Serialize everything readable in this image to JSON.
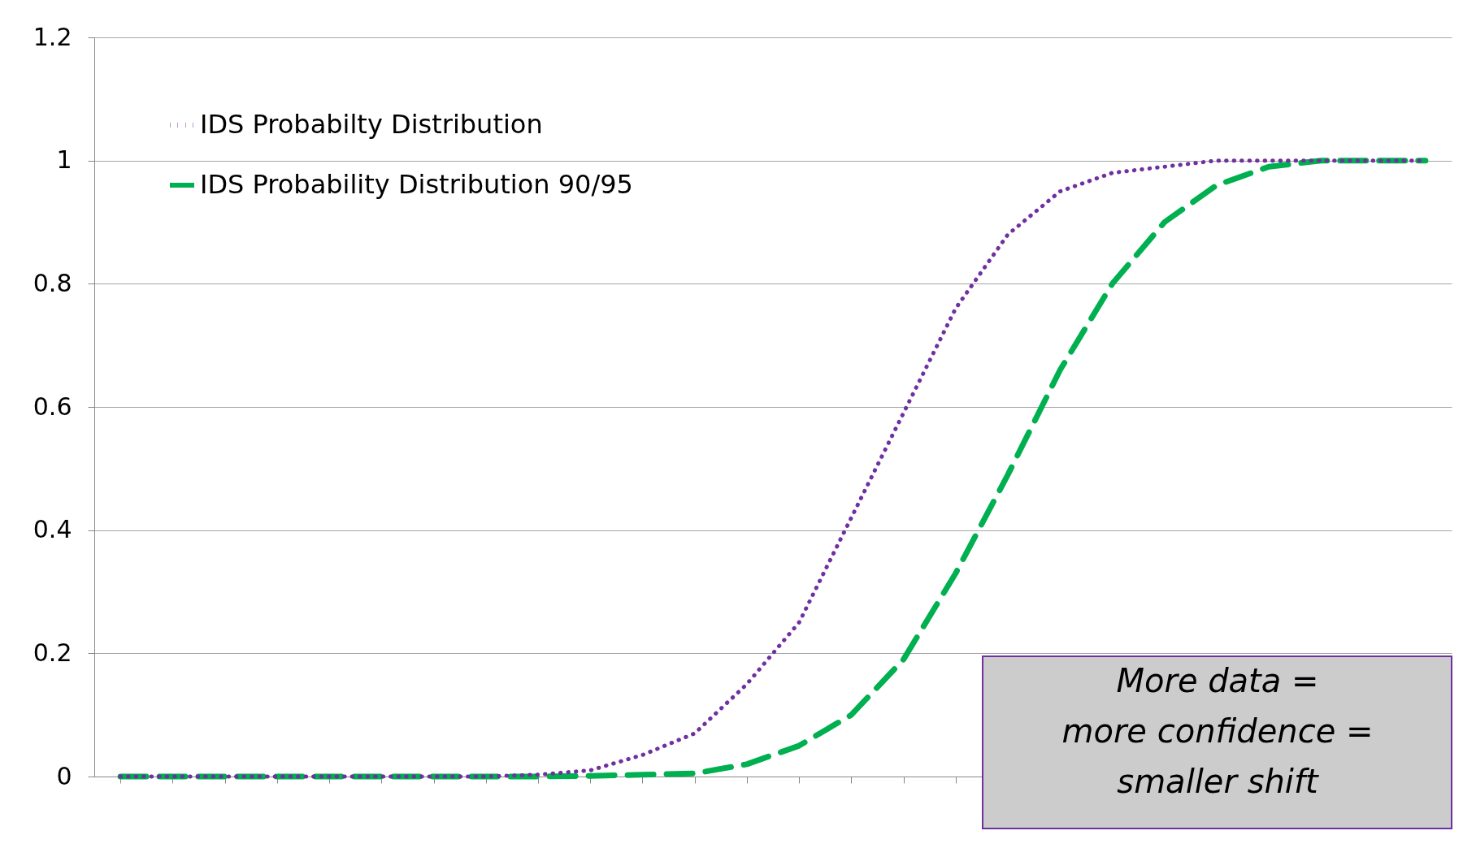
{
  "chart_data": {
    "type": "line",
    "categories": [
      null,
      null,
      null,
      null,
      null,
      null,
      null,
      null,
      null,
      null,
      null,
      null,
      null,
      null,
      null,
      null,
      null,
      null,
      null,
      null,
      null,
      null,
      null,
      null,
      null,
      null
    ],
    "series": [
      {
        "name": "IDS Probabilty Distribution",
        "color": "#7030a0",
        "line_style": "dotted",
        "values": [
          0,
          0,
          0,
          0,
          0,
          0,
          0,
          0,
          0.003,
          0.01,
          0.035,
          0.07,
          0.15,
          0.25,
          0.42,
          0.59,
          0.76,
          0.88,
          0.95,
          0.98,
          0.99,
          1,
          1,
          1,
          1,
          1
        ]
      },
      {
        "name": "IDS Probability Distribution 90/95",
        "color": "#00b050",
        "line_style": "dashed",
        "values": [
          0,
          0,
          0,
          0,
          0,
          0,
          0,
          0,
          0,
          0.001,
          0.003,
          0.005,
          0.02,
          0.05,
          0.1,
          0.19,
          0.33,
          0.49,
          0.66,
          0.8,
          0.9,
          0.96,
          0.99,
          1,
          1,
          1
        ]
      }
    ],
    "ylim": [
      0,
      1.2
    ],
    "yticks": [
      0,
      0.2,
      0.4,
      0.6,
      0.8,
      1,
      1.2
    ],
    "grid": "y",
    "legend": "top left",
    "annotations": [
      "More data =\nmore confidence =\nsmaller shift"
    ]
  }
}
